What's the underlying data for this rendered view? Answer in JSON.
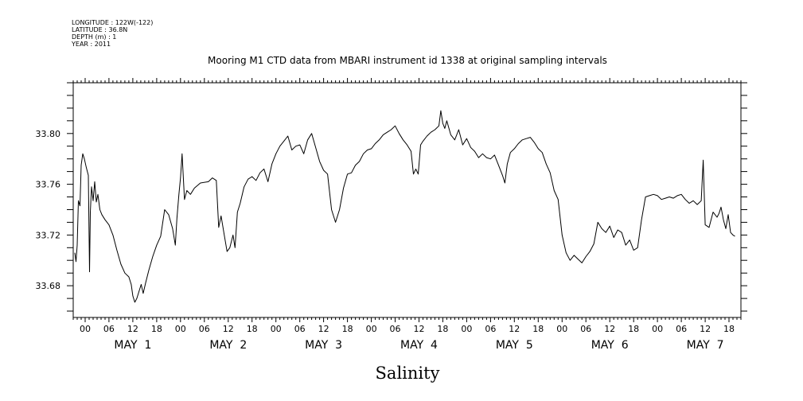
{
  "meta": {
    "longitude": "LONGITUDE : 122W(-122)",
    "latitude": "LATITUDE : 36.8N",
    "depth": "DEPTH (m) : 1",
    "year": "YEAR : 2011"
  },
  "chart_data": {
    "type": "line",
    "title": "Mooring M1 CTD data from MBARI instrument id 1338 at original sampling intervals",
    "xlabel": "Salinity",
    "ylabel": "",
    "ylim": [
      33.655,
      33.84
    ],
    "y_ticks": [
      "33.68",
      "33.72",
      "33.76",
      "33.80"
    ],
    "hour_tick_labels": [
      "00",
      "06",
      "12",
      "18"
    ],
    "day_labels": [
      "MAY  1",
      "MAY  2",
      "MAY  3",
      "MAY  4",
      "MAY  5",
      "MAY  6",
      "MAY  7"
    ],
    "x_unit": "hours from 2011-05-01 00:00",
    "xlim": [
      -3,
      165
    ],
    "series": [
      {
        "values": [
          [
            -2.6,
            33.706
          ],
          [
            -2.3,
            33.699
          ],
          [
            -2.0,
            33.712
          ],
          [
            -1.7,
            33.747
          ],
          [
            -1.3,
            33.743
          ],
          [
            -1.0,
            33.775
          ],
          [
            -0.6,
            33.784
          ],
          [
            -0.2,
            33.78
          ],
          [
            0.3,
            33.773
          ],
          [
            0.8,
            33.767
          ],
          [
            1.1,
            33.691
          ],
          [
            1.3,
            33.738
          ],
          [
            1.6,
            33.758
          ],
          [
            2.0,
            33.747
          ],
          [
            2.4,
            33.762
          ],
          [
            2.8,
            33.746
          ],
          [
            3.2,
            33.752
          ],
          [
            3.7,
            33.74
          ],
          [
            4.2,
            33.736
          ],
          [
            5,
            33.732
          ],
          [
            6,
            33.728
          ],
          [
            7,
            33.72
          ],
          [
            8,
            33.708
          ],
          [
            9,
            33.697
          ],
          [
            10,
            33.69
          ],
          [
            11,
            33.687
          ],
          [
            11.6,
            33.681
          ],
          [
            12,
            33.672
          ],
          [
            12.5,
            33.667
          ],
          [
            13,
            33.67
          ],
          [
            13.6,
            33.676
          ],
          [
            14.1,
            33.681
          ],
          [
            14.6,
            33.674
          ],
          [
            15.2,
            33.682
          ],
          [
            16,
            33.692
          ],
          [
            17,
            33.703
          ],
          [
            18,
            33.712
          ],
          [
            19,
            33.719
          ],
          [
            20,
            33.74
          ],
          [
            21,
            33.736
          ],
          [
            22,
            33.725
          ],
          [
            22.7,
            33.712
          ],
          [
            23.1,
            33.733
          ],
          [
            23.6,
            33.752
          ],
          [
            24.0,
            33.765
          ],
          [
            24.4,
            33.784
          ],
          [
            25.0,
            33.748
          ],
          [
            25.6,
            33.755
          ],
          [
            26.5,
            33.752
          ],
          [
            27.5,
            33.757
          ],
          [
            29,
            33.761
          ],
          [
            31,
            33.762
          ],
          [
            32,
            33.765
          ],
          [
            33,
            33.763
          ],
          [
            33.6,
            33.726
          ],
          [
            34.2,
            33.735
          ],
          [
            35.0,
            33.72
          ],
          [
            35.7,
            33.707
          ],
          [
            36.4,
            33.71
          ],
          [
            37.2,
            33.72
          ],
          [
            37.7,
            33.71
          ],
          [
            38.3,
            33.738
          ],
          [
            39,
            33.745
          ],
          [
            40,
            33.758
          ],
          [
            41,
            33.764
          ],
          [
            42,
            33.766
          ],
          [
            43,
            33.763
          ],
          [
            44,
            33.769
          ],
          [
            45,
            33.772
          ],
          [
            46,
            33.762
          ],
          [
            47,
            33.776
          ],
          [
            48,
            33.784
          ],
          [
            49,
            33.79
          ],
          [
            50,
            33.794
          ],
          [
            51,
            33.798
          ],
          [
            52,
            33.787
          ],
          [
            53,
            33.79
          ],
          [
            54,
            33.791
          ],
          [
            55,
            33.784
          ],
          [
            56,
            33.795
          ],
          [
            57,
            33.8
          ],
          [
            58,
            33.789
          ],
          [
            59,
            33.778
          ],
          [
            60,
            33.771
          ],
          [
            61,
            33.768
          ],
          [
            62,
            33.74
          ],
          [
            63,
            33.73
          ],
          [
            64,
            33.74
          ],
          [
            65,
            33.757
          ],
          [
            66,
            33.768
          ],
          [
            67,
            33.769
          ],
          [
            68,
            33.775
          ],
          [
            69,
            33.778
          ],
          [
            70,
            33.784
          ],
          [
            71,
            33.787
          ],
          [
            72,
            33.788
          ],
          [
            73,
            33.792
          ],
          [
            74,
            33.795
          ],
          [
            75,
            33.799
          ],
          [
            76,
            33.801
          ],
          [
            77,
            33.803
          ],
          [
            78,
            33.806
          ],
          [
            79,
            33.8
          ],
          [
            80,
            33.795
          ],
          [
            81,
            33.791
          ],
          [
            82,
            33.786
          ],
          [
            82.6,
            33.768
          ],
          [
            83.2,
            33.772
          ],
          [
            83.8,
            33.768
          ],
          [
            84.4,
            33.791
          ],
          [
            85,
            33.794
          ],
          [
            86,
            33.798
          ],
          [
            87,
            33.801
          ],
          [
            88,
            33.803
          ],
          [
            89,
            33.806
          ],
          [
            89.5,
            33.818
          ],
          [
            90,
            33.808
          ],
          [
            90.5,
            33.804
          ],
          [
            91,
            33.81
          ],
          [
            92,
            33.799
          ],
          [
            93,
            33.795
          ],
          [
            94,
            33.803
          ],
          [
            95,
            33.791
          ],
          [
            96,
            33.796
          ],
          [
            97,
            33.789
          ],
          [
            98,
            33.786
          ],
          [
            99,
            33.781
          ],
          [
            100,
            33.784
          ],
          [
            101,
            33.781
          ],
          [
            102,
            33.78
          ],
          [
            103,
            33.783
          ],
          [
            104,
            33.775
          ],
          [
            105,
            33.767
          ],
          [
            105.6,
            33.761
          ],
          [
            106.2,
            33.776
          ],
          [
            107,
            33.785
          ],
          [
            108,
            33.788
          ],
          [
            109,
            33.792
          ],
          [
            110,
            33.795
          ],
          [
            111,
            33.796
          ],
          [
            112,
            33.797
          ],
          [
            113,
            33.793
          ],
          [
            114,
            33.788
          ],
          [
            115,
            33.785
          ],
          [
            116,
            33.776
          ],
          [
            117,
            33.769
          ],
          [
            118,
            33.755
          ],
          [
            119,
            33.748
          ],
          [
            120,
            33.72
          ],
          [
            121,
            33.706
          ],
          [
            122,
            33.7
          ],
          [
            123,
            33.704
          ],
          [
            124,
            33.701
          ],
          [
            125,
            33.698
          ],
          [
            126,
            33.703
          ],
          [
            127,
            33.707
          ],
          [
            128,
            33.713
          ],
          [
            129,
            33.73
          ],
          [
            130,
            33.725
          ],
          [
            131,
            33.722
          ],
          [
            132,
            33.727
          ],
          [
            133,
            33.718
          ],
          [
            134,
            33.724
          ],
          [
            135,
            33.722
          ],
          [
            136,
            33.712
          ],
          [
            137,
            33.716
          ],
          [
            138,
            33.708
          ],
          [
            139,
            33.71
          ],
          [
            140,
            33.732
          ],
          [
            141,
            33.75
          ],
          [
            142,
            33.751
          ],
          [
            143,
            33.752
          ],
          [
            144,
            33.751
          ],
          [
            145,
            33.748
          ],
          [
            146,
            33.749
          ],
          [
            147,
            33.75
          ],
          [
            148,
            33.749
          ],
          [
            149,
            33.751
          ],
          [
            150,
            33.752
          ],
          [
            151,
            33.748
          ],
          [
            152,
            33.745
          ],
          [
            153,
            33.747
          ],
          [
            154,
            33.744
          ],
          [
            155,
            33.747
          ],
          [
            155.5,
            33.779
          ],
          [
            156,
            33.728
          ],
          [
            157,
            33.726
          ],
          [
            158,
            33.738
          ],
          [
            159,
            33.734
          ],
          [
            159.5,
            33.737
          ],
          [
            160,
            33.742
          ],
          [
            160.6,
            33.732
          ],
          [
            161.2,
            33.725
          ],
          [
            161.8,
            33.736
          ],
          [
            162.4,
            33.722
          ],
          [
            163,
            33.72
          ],
          [
            163.5,
            33.719
          ]
        ]
      }
    ]
  }
}
